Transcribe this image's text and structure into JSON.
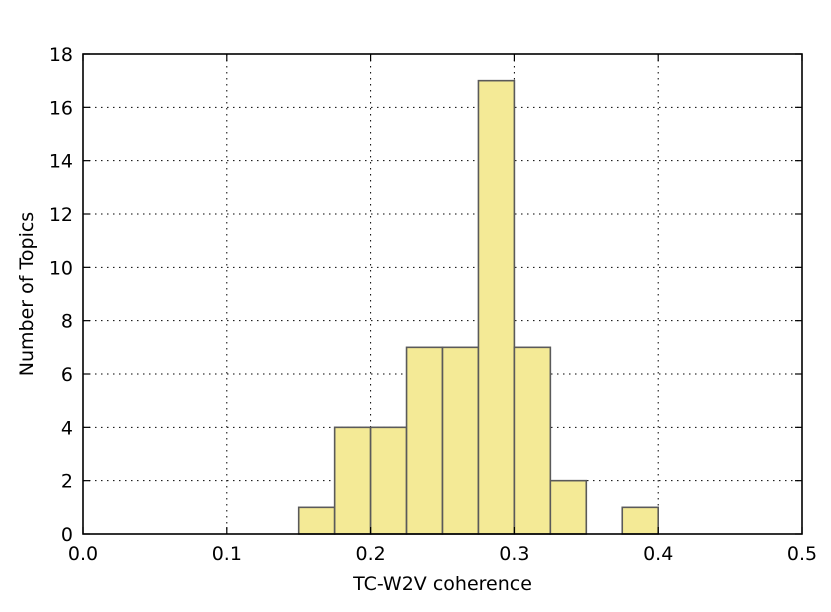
{
  "chart_data": {
    "type": "bar",
    "subtype": "histogram",
    "title": "",
    "xlabel": "TC-W2V coherence",
    "ylabel": "Number of Topics",
    "xlim": [
      0.0,
      0.5
    ],
    "ylim": [
      0,
      18
    ],
    "xticks": [
      0.0,
      0.1,
      0.2,
      0.3,
      0.4,
      0.5
    ],
    "xtick_labels": [
      "0.0",
      "0.1",
      "0.2",
      "0.3",
      "0.4",
      "0.5"
    ],
    "yticks": [
      0,
      2,
      4,
      6,
      8,
      10,
      12,
      14,
      16,
      18
    ],
    "ytick_labels": [
      "0",
      "2",
      "4",
      "6",
      "8",
      "10",
      "12",
      "14",
      "16",
      "18"
    ],
    "grid": true,
    "bins": [
      {
        "start": 0.15,
        "end": 0.175,
        "count": 1
      },
      {
        "start": 0.175,
        "end": 0.2,
        "count": 4
      },
      {
        "start": 0.2,
        "end": 0.225,
        "count": 4
      },
      {
        "start": 0.225,
        "end": 0.25,
        "count": 7
      },
      {
        "start": 0.25,
        "end": 0.275,
        "count": 7
      },
      {
        "start": 0.275,
        "end": 0.3,
        "count": 17
      },
      {
        "start": 0.3,
        "end": 0.325,
        "count": 7
      },
      {
        "start": 0.325,
        "end": 0.35,
        "count": 2
      },
      {
        "start": 0.35,
        "end": 0.375,
        "count": 0
      },
      {
        "start": 0.375,
        "end": 0.4,
        "count": 1
      }
    ],
    "bar_color": "#f4ea96",
    "edge_color": "#5a5a5a"
  }
}
